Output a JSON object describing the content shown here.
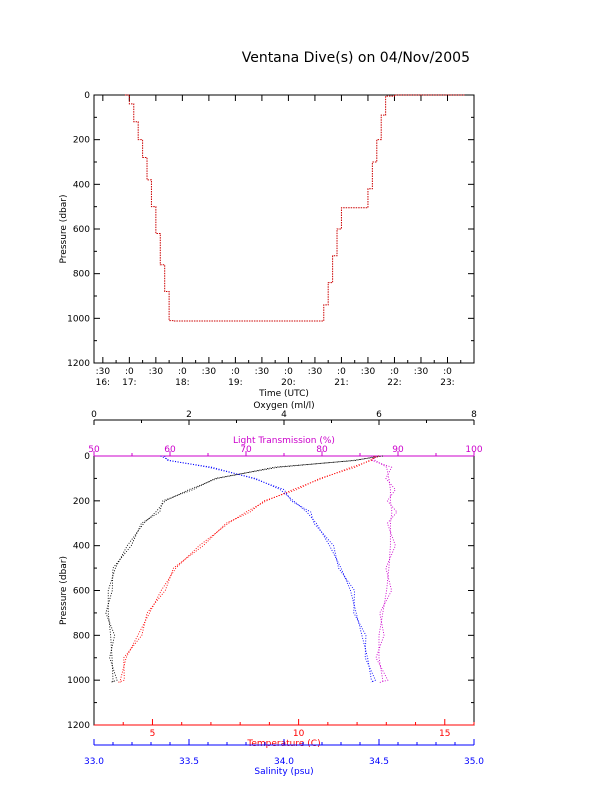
{
  "title": "Ventana Dive(s) on 04/Nov/2005",
  "colors": {
    "axis": "#000000",
    "trace": "#cc0000",
    "trace_dots": "#000000",
    "oxygen": "#000000",
    "light": "#cc00cc",
    "temperature": "#ff0000",
    "salinity": "#0000ff"
  },
  "chart_data": [
    {
      "type": "line",
      "ylabel": "Pressure (dbar)",
      "xlabel": "Time (UTC)",
      "ylim": [
        1200,
        0
      ],
      "y_reversed": true,
      "yticks": [
        "0",
        "200",
        "400",
        "600",
        "800",
        "1000",
        "1200"
      ],
      "xlim": [
        "16:20",
        "23:30"
      ],
      "xtick_top": [
        ":30",
        ":0",
        ":30",
        ":0",
        ":30",
        ":0",
        ":30",
        ":0",
        ":30",
        ":0",
        ":30",
        ":0",
        ":30",
        ":0"
      ],
      "xtick_bottom": [
        "16:",
        "17:",
        "18:",
        "19:",
        "20:",
        "21:",
        "22:",
        "23:"
      ],
      "series": [
        {
          "x": [
            "16:55",
            "16:57",
            "17:00",
            "17:05",
            "17:10",
            "17:15",
            "17:20",
            "17:25",
            "17:30",
            "17:35",
            "17:40",
            "17:45",
            "17:50",
            "18:00",
            "18:30",
            "19:00",
            "19:30",
            "20:00",
            "20:30",
            "20:37",
            "20:40",
            "20:45",
            "20:50",
            "20:55",
            "21:00",
            "21:15",
            "21:25",
            "21:30",
            "21:35",
            "21:40",
            "21:45",
            "21:50",
            "22:00",
            "22:30",
            "23:00",
            "23:20"
          ],
          "y": [
            0,
            0,
            40,
            120,
            200,
            280,
            380,
            500,
            620,
            760,
            880,
            1010,
            1012,
            1012,
            1012,
            1012,
            1012,
            1012,
            1012,
            1012,
            940,
            840,
            720,
            600,
            505,
            505,
            505,
            420,
            300,
            200,
            90,
            5,
            0,
            0,
            0,
            0
          ]
        }
      ]
    },
    {
      "type": "line",
      "ylabel": "Pressure (dbar)",
      "ylim": [
        1200,
        0
      ],
      "y_reversed": true,
      "yticks": [
        "0",
        "200",
        "400",
        "600",
        "800",
        "1000",
        "1200"
      ],
      "axes": {
        "oxygen": {
          "label": "Oxygen (ml/l)",
          "min": 0,
          "max": 8,
          "ticks": [
            "0",
            "2",
            "4",
            "6",
            "8"
          ]
        },
        "light": {
          "label": "Light Transmission (%)",
          "min": 50,
          "max": 100,
          "ticks": [
            "50",
            "60",
            "70",
            "80",
            "90",
            "100"
          ]
        },
        "temperature": {
          "label": "Temperature (C)",
          "min": 3.0,
          "max": 16.0,
          "ticks": [
            "5",
            "10",
            "15"
          ]
        },
        "salinity": {
          "label": "Salinity (psu)",
          "min": 33.0,
          "max": 35.0,
          "ticks": [
            "33.0",
            "33.5",
            "34.0",
            "34.5",
            "35.0"
          ]
        }
      },
      "profiles": {
        "pressure": [
          0,
          20,
          50,
          100,
          150,
          200,
          250,
          300,
          400,
          500,
          600,
          700,
          800,
          900,
          1000,
          1010
        ],
        "oxygen": [
          6.0,
          5.5,
          3.8,
          2.6,
          2.0,
          1.5,
          1.3,
          1.05,
          0.7,
          0.45,
          0.3,
          0.3,
          0.35,
          0.38,
          0.4,
          0.4
        ],
        "light": [
          86.5,
          87.0,
          88.5,
          88.8,
          89.0,
          89.0,
          89.2,
          89.0,
          89.0,
          88.8,
          88.5,
          88.0,
          87.5,
          87.5,
          88.0,
          88.0
        ],
        "temperature": [
          12.6,
          12.5,
          11.8,
          10.8,
          9.8,
          8.9,
          8.2,
          7.6,
          6.6,
          5.8,
          5.3,
          4.9,
          4.5,
          4.1,
          3.9,
          3.9
        ],
        "salinity": [
          33.35,
          33.4,
          33.6,
          33.85,
          33.98,
          34.05,
          34.12,
          34.17,
          34.24,
          34.3,
          34.35,
          34.38,
          34.41,
          34.44,
          34.46,
          34.47
        ]
      }
    }
  ]
}
